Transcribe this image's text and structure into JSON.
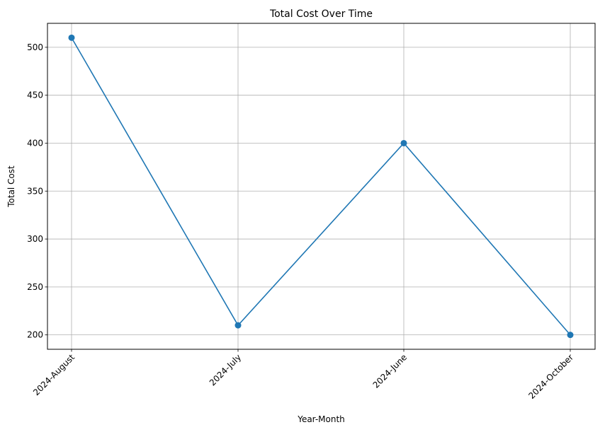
{
  "chart_data": {
    "type": "line",
    "title": "Total Cost Over Time",
    "xlabel": "Year-Month",
    "ylabel": "Total Cost",
    "categories": [
      "2024-August",
      "2024-July",
      "2024-June",
      "2024-October"
    ],
    "series": [
      {
        "values": [
          510,
          210,
          400,
          200
        ],
        "color": "#1f77b4",
        "marker": "circle"
      }
    ],
    "ylim": [
      185,
      525
    ],
    "yticks": [
      200,
      250,
      300,
      350,
      400,
      450,
      500
    ],
    "grid": true,
    "x_tick_rotation": 45
  }
}
